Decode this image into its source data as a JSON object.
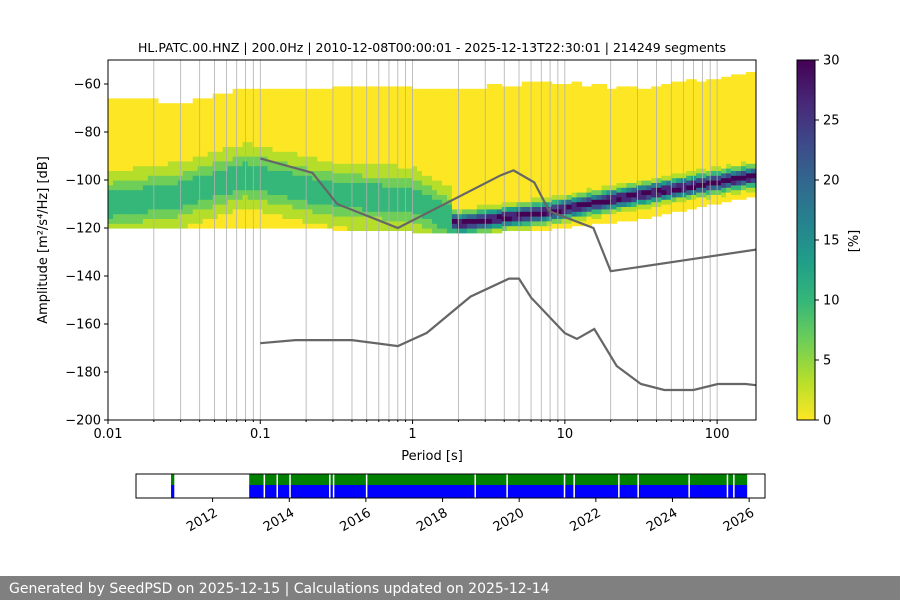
{
  "chart_data": [
    {
      "type": "heatmap",
      "title": "HL.PATC.00.HNZ | 200.0Hz | 2010-12-08T00:00:01 - 2025-12-13T22:30:01 | 214249 segments",
      "xlabel": "Period [s]",
      "ylabel": "Amplitude [m²/s⁴/Hz] [dB]",
      "x_scale": "log",
      "xlim": [
        0.01,
        180
      ],
      "ylim": [
        -200,
        -50
      ],
      "x_ticks": [
        "0.01",
        "0.1",
        "1",
        "10",
        "100"
      ],
      "y_ticks": [
        "−60",
        "−80",
        "−100",
        "−120",
        "−140",
        "−160",
        "−180",
        "−200"
      ],
      "grid": "vertical minor and major lines on log x-axis",
      "colorbar": {
        "label": "[%]",
        "range": [
          0,
          30
        ],
        "ticks": [
          "0",
          "5",
          "10",
          "15",
          "20",
          "25",
          "30"
        ],
        "colormap": [
          "#fde725",
          "#b5de2b",
          "#6ece58",
          "#35b779",
          "#1f9e89",
          "#26828e",
          "#31688e",
          "#3e4989",
          "#482878",
          "#440154"
        ]
      },
      "psd_band": [
        {
          "x": 0.01,
          "low": -120,
          "high": -66,
          "mode": -110
        },
        {
          "x": 0.03,
          "low": -120,
          "high": -69,
          "mode": -106
        },
        {
          "x": 0.08,
          "low": -120,
          "high": -63,
          "mode": -98
        },
        {
          "x": 0.3,
          "low": -120,
          "high": -62,
          "mode": -106
        },
        {
          "x": 1,
          "low": -121,
          "high": -62,
          "mode": -108
        },
        {
          "x": 2,
          "low": -122,
          "high": -63,
          "mode": -118
        },
        {
          "x": 8,
          "low": -120,
          "high": -60,
          "mode": -113
        },
        {
          "x": 30,
          "low": -116,
          "high": -63,
          "mode": -106
        },
        {
          "x": 180,
          "low": -106,
          "high": -56,
          "mode": -98
        }
      ],
      "series": [
        {
          "name": "NHNM",
          "x": [
            0.1,
            0.22,
            0.32,
            0.8,
            3.8,
            4.6,
            6.3,
            7.9,
            15.4,
            20,
            180
          ],
          "y": [
            -91,
            -97,
            -110,
            -120,
            -98,
            -96,
            -101,
            -113,
            -120,
            -138,
            -129
          ]
        },
        {
          "name": "NLNM",
          "x": [
            0.1,
            0.17,
            0.4,
            0.8,
            1.24,
            2.4,
            4.3,
            5.0,
            6.0,
            10.0,
            12.0,
            15.6,
            21.9,
            31.6,
            45,
            70,
            101,
            154,
            180
          ],
          "y": [
            -168,
            -166.7,
            -166.7,
            -169.2,
            -163.7,
            -148.6,
            -141.1,
            -141.1,
            -149,
            -163.8,
            -166.2,
            -162.1,
            -177.5,
            -185,
            -187.5,
            -187.5,
            -185,
            -185,
            -185.5
          ]
        }
      ]
    },
    {
      "type": "bar",
      "title": "",
      "x_ticks": [
        "2012",
        "2014",
        "2016",
        "2018",
        "2020",
        "2022",
        "2024",
        "2026"
      ],
      "xlim": [
        "2010-01-01",
        "2026-06-01"
      ],
      "colors": {
        "availability": "#0000ff",
        "gaps_known": "#008000"
      },
      "segments": [
        {
          "start": "2010-12-01",
          "end": "2011-01-01",
          "kind": "both"
        },
        {
          "start": "2012-12-15",
          "end": "2025-12-13",
          "kind": "both"
        }
      ],
      "gaps": [
        "2013-05-01",
        "2013-09-01",
        "2014-01-01",
        "2015-01-15",
        "2015-02-20",
        "2016-01-01",
        "2018-11-01",
        "2019-09-01",
        "2021-03-01",
        "2021-06-01",
        "2022-08-01",
        "2023-02-01",
        "2024-06-01",
        "2025-06-01",
        "2025-08-01"
      ]
    }
  ],
  "footer": "Generated by SeedPSD on 2025-12-15 | Calculations updated on 2025-12-14"
}
